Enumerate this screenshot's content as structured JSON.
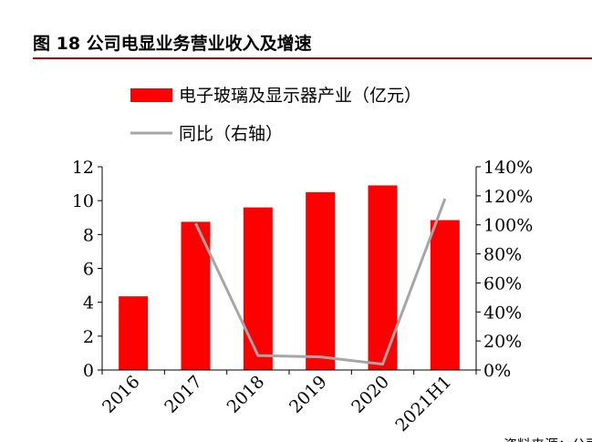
{
  "figure": {
    "title": "图 18 公司电显业务营业收入及增速"
  },
  "chart_data": {
    "type": "bar",
    "categories": [
      "2016",
      "2017",
      "2018",
      "2019",
      "2020",
      "2021H1"
    ],
    "series": [
      {
        "name": "电子玻璃及显示器产业（亿元）",
        "type": "bar",
        "axis": "left",
        "color": "#ff0000",
        "values": [
          4.35,
          8.75,
          9.6,
          10.5,
          10.9,
          8.85
        ]
      },
      {
        "name": "同比（右轴）",
        "type": "line",
        "axis": "right",
        "color": "#a6a6a6",
        "values": [
          null,
          101,
          10,
          9,
          4,
          118
        ]
      }
    ],
    "y_left": {
      "min": 0,
      "max": 12,
      "ticks": [
        "0",
        "2",
        "4",
        "6",
        "8",
        "10",
        "12"
      ]
    },
    "y_right": {
      "min": 0,
      "max": 140,
      "ticks": [
        "0%",
        "20%",
        "40%",
        "60%",
        "80%",
        "100%",
        "120%",
        "140%"
      ]
    },
    "grid": false,
    "legend_position": "top-left"
  },
  "footer": {
    "source_fragment": "资料来源：公司"
  }
}
